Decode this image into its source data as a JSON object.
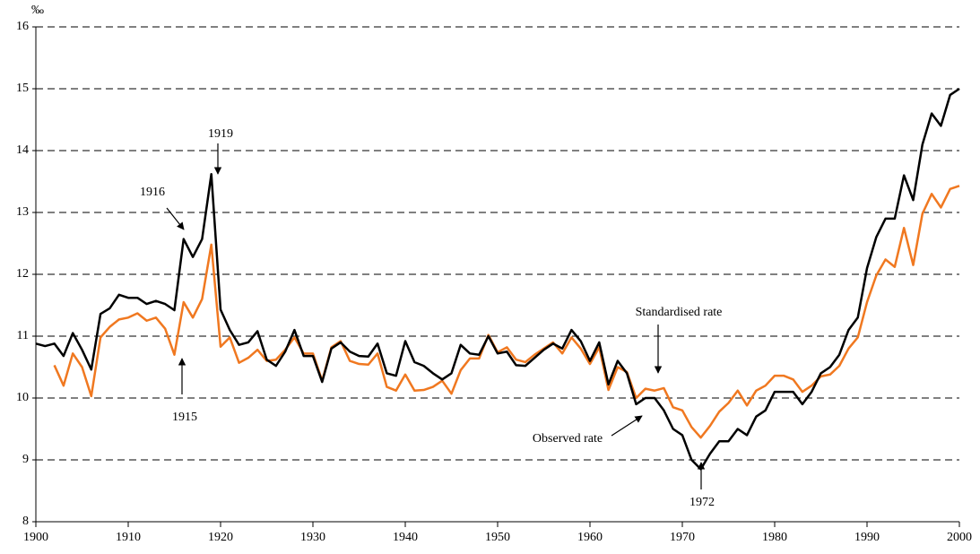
{
  "chart_data": {
    "type": "line",
    "y_label": "‰",
    "x": [
      1900,
      1901,
      1902,
      1903,
      1904,
      1905,
      1906,
      1907,
      1908,
      1909,
      1910,
      1911,
      1912,
      1913,
      1914,
      1915,
      1916,
      1917,
      1918,
      1919,
      1920,
      1921,
      1922,
      1923,
      1924,
      1925,
      1926,
      1927,
      1928,
      1929,
      1930,
      1931,
      1932,
      1933,
      1934,
      1935,
      1936,
      1937,
      1938,
      1939,
      1940,
      1941,
      1942,
      1943,
      1944,
      1945,
      1946,
      1947,
      1948,
      1949,
      1950,
      1951,
      1952,
      1953,
      1954,
      1955,
      1956,
      1957,
      1958,
      1959,
      1960,
      1961,
      1962,
      1963,
      1964,
      1965,
      1966,
      1967,
      1968,
      1969,
      1970,
      1971,
      1972,
      1973,
      1974,
      1975,
      1976,
      1977,
      1978,
      1979,
      1980,
      1981,
      1982,
      1983,
      1984,
      1985,
      1986,
      1987,
      1988,
      1989,
      1990,
      1991,
      1992,
      1993,
      1994,
      1995,
      1996,
      1997,
      1998,
      1999,
      2000
    ],
    "series": [
      {
        "name": "Observed rate",
        "color": "#000000",
        "values": [
          10.88,
          10.84,
          10.88,
          10.68,
          11.05,
          10.78,
          10.46,
          11.36,
          11.45,
          11.67,
          11.62,
          11.62,
          11.52,
          11.57,
          11.52,
          11.42,
          12.57,
          12.28,
          12.57,
          13.62,
          11.43,
          11.1,
          10.86,
          10.9,
          11.08,
          10.62,
          10.52,
          10.75,
          11.1,
          10.68,
          10.68,
          10.26,
          10.8,
          10.9,
          10.75,
          10.68,
          10.67,
          10.88,
          10.4,
          10.36,
          10.92,
          10.58,
          10.52,
          10.4,
          10.3,
          10.4,
          10.86,
          10.72,
          10.7,
          11.0,
          10.72,
          10.75,
          10.53,
          10.52,
          10.65,
          10.78,
          10.88,
          10.8,
          11.1,
          10.92,
          10.6,
          10.9,
          10.22,
          10.6,
          10.4,
          9.9,
          10.0,
          10.0,
          9.8,
          9.5,
          9.4,
          9.0,
          8.85,
          9.1,
          9.3,
          9.3,
          9.5,
          9.4,
          9.7,
          9.8,
          10.1,
          10.1,
          10.1,
          9.9,
          10.1,
          10.4,
          10.5,
          10.7,
          11.1,
          11.3,
          12.1,
          12.6,
          12.9,
          12.9,
          13.6,
          13.2,
          14.1,
          14.6,
          14.4,
          14.9,
          15.0
        ]
      },
      {
        "name": "Standardised rate",
        "color": "#f07820",
        "values": [
          null,
          null,
          10.53,
          10.2,
          10.72,
          10.5,
          10.03,
          10.98,
          11.15,
          11.27,
          11.3,
          11.37,
          11.25,
          11.3,
          11.12,
          10.7,
          11.55,
          11.3,
          11.6,
          12.48,
          10.83,
          10.98,
          10.57,
          10.65,
          10.78,
          10.6,
          10.62,
          10.78,
          10.98,
          10.72,
          10.72,
          10.28,
          10.82,
          10.92,
          10.6,
          10.55,
          10.54,
          10.72,
          10.18,
          10.12,
          10.38,
          10.12,
          10.13,
          10.18,
          10.28,
          10.07,
          10.45,
          10.64,
          10.64,
          11.02,
          10.74,
          10.82,
          10.62,
          10.58,
          10.7,
          10.8,
          10.9,
          10.72,
          10.98,
          10.8,
          10.55,
          10.82,
          10.13,
          10.5,
          10.42,
          10.0,
          10.15,
          10.12,
          10.16,
          9.85,
          9.8,
          9.53,
          9.36,
          9.55,
          9.78,
          9.92,
          10.12,
          9.88,
          10.12,
          10.2,
          10.36,
          10.36,
          10.3,
          10.1,
          10.2,
          10.35,
          10.38,
          10.52,
          10.8,
          10.98,
          11.55,
          11.98,
          12.24,
          12.12,
          12.75,
          12.15,
          12.98,
          13.3,
          13.08,
          13.38,
          13.43
        ]
      }
    ],
    "annotations": [
      "1916",
      "1919",
      "1915",
      "1972"
    ],
    "xlim": [
      1900,
      2000
    ],
    "xticks": [
      1900,
      1910,
      1920,
      1930,
      1940,
      1950,
      1960,
      1970,
      1980,
      1990,
      2000
    ],
    "ylim": [
      8,
      16
    ],
    "yticks": [
      8,
      9,
      10,
      11,
      12,
      13,
      14,
      15,
      16
    ],
    "grid": true
  }
}
